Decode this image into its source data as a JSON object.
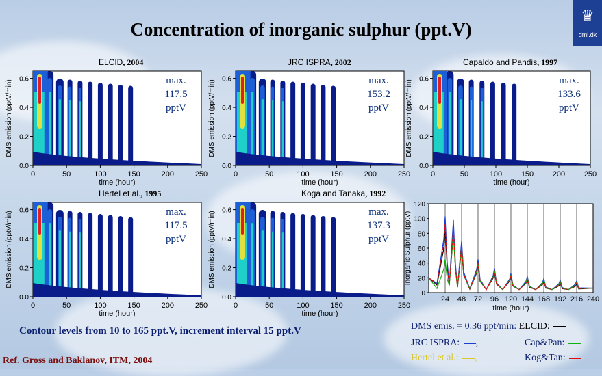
{
  "title": "Concentration of inorganic sulphur (ppt.V)",
  "logo": {
    "text": "dmi.dk"
  },
  "contour_panels": [
    {
      "label": "ELCID",
      "year": ", 2004",
      "max_label": "max.",
      "max_value": "117.5",
      "max_unit": "pptV",
      "columns": 10
    },
    {
      "label": "JRC ISPRA",
      "year": ", 2002",
      "max_label": "max.",
      "max_value": "153.2",
      "max_unit": "pptV",
      "columns": 10
    },
    {
      "label": "Capaldo and Pandis",
      "year": ", 1997",
      "max_label": "max.",
      "max_value": "133.6",
      "max_unit": "pptV",
      "columns": 8
    },
    {
      "label": "Hertel et al.",
      "year": ", 1995",
      "max_label": "max.",
      "max_value": "117.5",
      "max_unit": "pptV",
      "columns": 10
    },
    {
      "label": "Koga and Tanaka",
      "year": ", 1992",
      "max_label": "max.",
      "max_value": "137.3",
      "max_unit": "pptV",
      "columns": 10
    }
  ],
  "contour_axes": {
    "xlabel": "time (hour)",
    "ylabel": "DMS emission (pptV/min)",
    "xticks": [
      "0",
      "50",
      "100",
      "150",
      "200",
      "250"
    ],
    "yticks": [
      "0.0",
      "0.2",
      "0.4",
      "0.6"
    ]
  },
  "contour_note": "Contour levels from 10 to 165 ppt.V,  increment interval 15 ppt.V",
  "reference": "Ref. Gross and Baklanov, ITM, 2004",
  "colors": {
    "c1": "#0a1c8a",
    "c2": "#1c5fd6",
    "c3": "#1fd0c8",
    "c4": "#3fe08a",
    "c5": "#e0e040",
    "c6": "#e02020",
    "bg": "#ffffff"
  },
  "chart_data": {
    "type": "line",
    "title": "",
    "xlabel": "time (hour)",
    "ylabel": "Inorganic Sulphur (pptV)",
    "xlim": [
      0,
      240
    ],
    "ylim": [
      0,
      120
    ],
    "xticks": [
      24,
      48,
      72,
      96,
      120,
      144,
      168,
      192,
      216,
      240
    ],
    "yticks": [
      0,
      20,
      40,
      60,
      80,
      100,
      120
    ],
    "peaks": [
      24,
      36,
      48,
      72,
      96,
      120,
      144,
      168,
      192,
      216
    ],
    "series": [
      {
        "name": "ELCID",
        "color": "#000000",
        "peak_values": [
          85,
          80,
          60,
          38,
          28,
          22,
          18,
          15,
          13,
          12
        ]
      },
      {
        "name": "JRC ISPRA",
        "color": "#1a3fd0",
        "peak_values": [
          103,
          98,
          70,
          45,
          33,
          26,
          22,
          19,
          17,
          16
        ]
      },
      {
        "name": "Cap&Pan",
        "color": "#10b010",
        "peak_values": [
          45,
          82,
          62,
          40,
          30,
          24,
          20,
          17,
          15,
          14
        ]
      },
      {
        "name": "Kog&Tan",
        "color": "#e01010",
        "peak_values": [
          93,
          87,
          63,
          40,
          30,
          23,
          19,
          16,
          14,
          13
        ]
      }
    ]
  },
  "legend": {
    "line1_prefix": "DMS emis. = 0.36 ppt/min:",
    "elcid": "ELCID:",
    "jrc": "JRC ISPRA:",
    "jrc_sep": ",",
    "cappan": "Cap&Pan:",
    "hertel": "Hertel et al.:",
    "hertel_sep": ",",
    "kogtan": "Kog&Tan:"
  }
}
